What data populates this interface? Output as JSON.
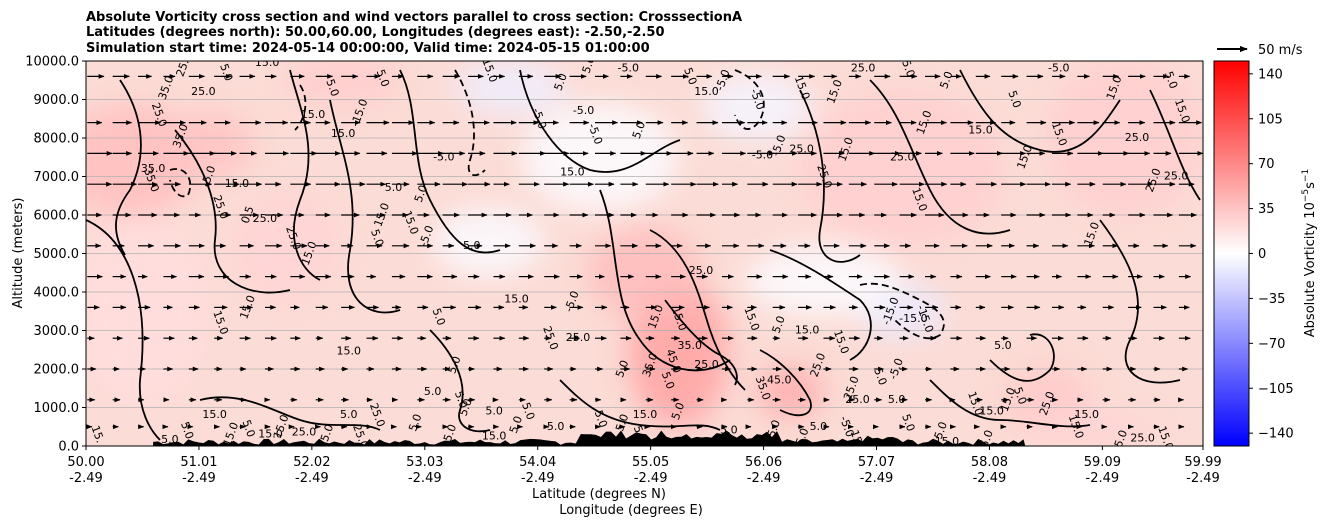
{
  "chart_data": {
    "type": "heatmap",
    "title_lines": [
      "Absolute Vorticity cross section and wind vectors parallel to cross section: CrosssectionA",
      "Latitudes (degrees north): 50.00,60.00, Longitudes (degrees east): -2.50,-2.50",
      "Simulation start time: 2024-05-14 00:00:00, Valid time: 2024-05-15 01:00:00"
    ],
    "xlabel_lat": "Latitude (degrees N)",
    "xlabel_lon": "Longitude (degrees E)",
    "ylabel": "Altitude (meters)",
    "xlim": [
      50.0,
      59.99
    ],
    "ylim": [
      0,
      10000
    ],
    "x_ticks": [
      {
        "value": 50.0,
        "lat": "50.00",
        "lon": "-2.49"
      },
      {
        "value": 51.01,
        "lat": "51.01",
        "lon": "-2.49"
      },
      {
        "value": 52.02,
        "lat": "52.02",
        "lon": "-2.49"
      },
      {
        "value": 53.03,
        "lat": "53.03",
        "lon": "-2.49"
      },
      {
        "value": 54.04,
        "lat": "54.04",
        "lon": "-2.49"
      },
      {
        "value": 55.05,
        "lat": "55.05",
        "lon": "-2.49"
      },
      {
        "value": 56.06,
        "lat": "56.06",
        "lon": "-2.49"
      },
      {
        "value": 57.07,
        "lat": "57.07",
        "lon": "-2.49"
      },
      {
        "value": 58.08,
        "lat": "58.08",
        "lon": "-2.49"
      },
      {
        "value": 59.09,
        "lat": "59.09",
        "lon": "-2.49"
      },
      {
        "value": 59.99,
        "lat": "59.99",
        "lon": "-2.49"
      }
    ],
    "y_ticks": [
      {
        "value": 0,
        "label": "0.0"
      },
      {
        "value": 1000,
        "label": "1000.0"
      },
      {
        "value": 2000,
        "label": "2000.0"
      },
      {
        "value": 3000,
        "label": "3000.0"
      },
      {
        "value": 4000,
        "label": "4000.0"
      },
      {
        "value": 5000,
        "label": "5000.0"
      },
      {
        "value": 6000,
        "label": "6000.0"
      },
      {
        "value": 7000,
        "label": "7000.0"
      },
      {
        "value": 8000,
        "label": "8000.0"
      },
      {
        "value": 9000,
        "label": "9000.0"
      },
      {
        "value": 10000,
        "label": "10000.0"
      }
    ],
    "grid": "horizontal",
    "colorbar": {
      "label": "Absolute Vorticity 10",
      "label_exponent": "−5",
      "label_suffix": "s",
      "label_suffix_exponent": "−1",
      "range": [
        -150,
        150
      ],
      "ticks": [
        {
          "value": 140,
          "label": "140"
        },
        {
          "value": 105,
          "label": "105"
        },
        {
          "value": 70,
          "label": "70"
        },
        {
          "value": 35,
          "label": "35"
        },
        {
          "value": 0,
          "label": "0"
        },
        {
          "value": -35,
          "label": "−35"
        },
        {
          "value": -70,
          "label": "−70"
        },
        {
          "value": -105,
          "label": "−105"
        },
        {
          "value": -140,
          "label": "−140"
        }
      ],
      "colors": {
        "negative": "#0000ff",
        "zero": "#ffffff",
        "positive": "#ff0000"
      }
    },
    "quiver_key": {
      "label": "50 m/s",
      "speed": 50
    },
    "wind_rows": [
      {
        "altitude": 9600,
        "speed": 9
      },
      {
        "altitude": 8400,
        "speed": 12
      },
      {
        "altitude": 7600,
        "speed": 14
      },
      {
        "altitude": 6800,
        "speed": 13
      },
      {
        "altitude": 6000,
        "speed": 10
      },
      {
        "altitude": 5200,
        "speed": 9
      },
      {
        "altitude": 4400,
        "speed": 8
      },
      {
        "altitude": 3600,
        "speed": 7
      },
      {
        "altitude": 2800,
        "speed": 6
      },
      {
        "altitude": 2000,
        "speed": 5
      },
      {
        "altitude": 1200,
        "speed": 4
      },
      {
        "altitude": 500,
        "speed": 3
      }
    ],
    "vorticity_blobs": [
      {
        "lat": 55.3,
        "alt": 2400,
        "value": 55,
        "rlat": 0.45,
        "ralt": 1900
      },
      {
        "lat": 56.3,
        "alt": 1400,
        "value": 48,
        "rlat": 0.3,
        "ralt": 700
      },
      {
        "lat": 50.4,
        "alt": 7400,
        "value": 38,
        "rlat": 0.6,
        "ralt": 1500
      },
      {
        "lat": 51.1,
        "alt": 7800,
        "value": 35,
        "rlat": 0.4,
        "ralt": 900
      },
      {
        "lat": 52.3,
        "alt": 9500,
        "value": 30,
        "rlat": 0.5,
        "ralt": 700
      },
      {
        "lat": 55.0,
        "alt": 4500,
        "value": 40,
        "rlat": 0.5,
        "ralt": 1200
      },
      {
        "lat": 57.3,
        "alt": 7200,
        "value": 28,
        "rlat": 0.9,
        "ralt": 2000
      },
      {
        "lat": 59.3,
        "alt": 8000,
        "value": 28,
        "rlat": 0.7,
        "ralt": 2000
      },
      {
        "lat": 58.6,
        "alt": 1200,
        "value": 32,
        "rlat": 0.4,
        "ralt": 900
      },
      {
        "lat": 59.0,
        "alt": 400,
        "value": 25,
        "rlat": 0.6,
        "ralt": 500
      },
      {
        "lat": 51.8,
        "alt": 5200,
        "value": 25,
        "rlat": 0.5,
        "ralt": 1500
      },
      {
        "lat": 50.5,
        "alt": 3500,
        "value": 20,
        "rlat": 0.6,
        "ralt": 2500
      },
      {
        "lat": 53.8,
        "alt": 9300,
        "value": -10,
        "rlat": 0.5,
        "ralt": 700
      },
      {
        "lat": 56.0,
        "alt": 8800,
        "value": -6,
        "rlat": 0.5,
        "ralt": 900
      },
      {
        "lat": 57.3,
        "alt": 3500,
        "value": -12,
        "rlat": 0.4,
        "ralt": 700
      },
      {
        "lat": 53.6,
        "alt": 5300,
        "value": -3,
        "rlat": 0.5,
        "ralt": 900
      },
      {
        "lat": 56.6,
        "alt": 4300,
        "value": -2,
        "rlat": 0.7,
        "ralt": 900
      },
      {
        "lat": 54.6,
        "alt": 7500,
        "value": -2,
        "rlat": 0.7,
        "ralt": 1400
      }
    ],
    "contour_labels": [
      {
        "lat": 50.88,
        "alt": 9900,
        "text": "25.0"
      },
      {
        "lat": 51.62,
        "alt": 9950,
        "text": "15.0"
      },
      {
        "lat": 51.25,
        "alt": 9700,
        "text": "5.0"
      },
      {
        "lat": 50.72,
        "alt": 9300,
        "text": "35.0"
      },
      {
        "lat": 51.05,
        "alt": 9200,
        "text": "25.0"
      },
      {
        "lat": 50.65,
        "alt": 8600,
        "text": "25.0"
      },
      {
        "lat": 50.85,
        "alt": 8050,
        "text": "35.0"
      },
      {
        "lat": 50.6,
        "alt": 7200,
        "text": "35.0"
      },
      {
        "lat": 50.58,
        "alt": 6900,
        "text": "35.0"
      },
      {
        "lat": 51.1,
        "alt": 7000,
        "text": "-5.0"
      },
      {
        "lat": 51.35,
        "alt": 6800,
        "text": "15.0"
      },
      {
        "lat": 51.2,
        "alt": 6200,
        "text": "25.0"
      },
      {
        "lat": 51.45,
        "alt": 6000,
        "text": "0.5"
      },
      {
        "lat": 51.6,
        "alt": 5900,
        "text": "25.0"
      },
      {
        "lat": 51.85,
        "alt": 5400,
        "text": "25.0"
      },
      {
        "lat": 52.0,
        "alt": 5000,
        "text": "15.0"
      },
      {
        "lat": 52.03,
        "alt": 8600,
        "text": "15.0"
      },
      {
        "lat": 52.2,
        "alt": 9300,
        "text": "5.0"
      },
      {
        "lat": 52.45,
        "alt": 8650,
        "text": "-15.0"
      },
      {
        "lat": 52.3,
        "alt": 8100,
        "text": "15.0"
      },
      {
        "lat": 52.65,
        "alt": 9550,
        "text": "5.0"
      },
      {
        "lat": 52.65,
        "alt": 6000,
        "text": "15.0"
      },
      {
        "lat": 52.75,
        "alt": 6700,
        "text": "5.0"
      },
      {
        "lat": 52.6,
        "alt": 5400,
        "text": "5.0"
      },
      {
        "lat": 53.0,
        "alt": 6550,
        "text": "5.0"
      },
      {
        "lat": 53.2,
        "alt": 7500,
        "text": "-5.0"
      },
      {
        "lat": 52.9,
        "alt": 5800,
        "text": "15.0"
      },
      {
        "lat": 53.05,
        "alt": 5450,
        "text": "-5.0"
      },
      {
        "lat": 53.45,
        "alt": 5200,
        "text": "5.0"
      },
      {
        "lat": 53.6,
        "alt": 9800,
        "text": "-15.0"
      },
      {
        "lat": 54.25,
        "alt": 9450,
        "text": "5.0"
      },
      {
        "lat": 54.45,
        "alt": 8700,
        "text": "-5.0"
      },
      {
        "lat": 54.05,
        "alt": 8500,
        "text": "-5.0"
      },
      {
        "lat": 54.5,
        "alt": 9900,
        "text": "5.0"
      },
      {
        "lat": 54.35,
        "alt": 7100,
        "text": "15.0"
      },
      {
        "lat": 54.55,
        "alt": 8100,
        "text": "-5.0"
      },
      {
        "lat": 54.95,
        "alt": 8200,
        "text": "5.0"
      },
      {
        "lat": 54.85,
        "alt": 9800,
        "text": "-5.0"
      },
      {
        "lat": 55.4,
        "alt": 9600,
        "text": "5.0"
      },
      {
        "lat": 55.7,
        "alt": 9500,
        "text": "-5.0"
      },
      {
        "lat": 55.55,
        "alt": 9200,
        "text": "15.0"
      },
      {
        "lat": 56.0,
        "alt": 9000,
        "text": "-5.0"
      },
      {
        "lat": 56.2,
        "alt": 7800,
        "text": "-5.0"
      },
      {
        "lat": 56.05,
        "alt": 7550,
        "text": "-5.0"
      },
      {
        "lat": 56.4,
        "alt": 9300,
        "text": "15.0"
      },
      {
        "lat": 56.7,
        "alt": 9200,
        "text": "15.0"
      },
      {
        "lat": 56.4,
        "alt": 7700,
        "text": "25.0"
      },
      {
        "lat": 56.6,
        "alt": 7000,
        "text": "25.0"
      },
      {
        "lat": 56.8,
        "alt": 7700,
        "text": "15.0"
      },
      {
        "lat": 56.95,
        "alt": 9800,
        "text": "25.0"
      },
      {
        "lat": 57.35,
        "alt": 9800,
        "text": "5.0"
      },
      {
        "lat": 57.5,
        "alt": 8400,
        "text": "15.0"
      },
      {
        "lat": 57.3,
        "alt": 7500,
        "text": "25.0"
      },
      {
        "lat": 57.45,
        "alt": 6400,
        "text": "15.0"
      },
      {
        "lat": 57.7,
        "alt": 9500,
        "text": "5.0"
      },
      {
        "lat": 58.0,
        "alt": 8200,
        "text": "15.0"
      },
      {
        "lat": 58.3,
        "alt": 9000,
        "text": "5.0"
      },
      {
        "lat": 58.4,
        "alt": 7500,
        "text": "15.0"
      },
      {
        "lat": 58.7,
        "alt": 9800,
        "text": "-5.0"
      },
      {
        "lat": 58.7,
        "alt": 8100,
        "text": "15.0"
      },
      {
        "lat": 59.2,
        "alt": 9300,
        "text": "15.0"
      },
      {
        "lat": 59.4,
        "alt": 8000,
        "text": "25.0"
      },
      {
        "lat": 59.7,
        "alt": 9500,
        "text": "5.0"
      },
      {
        "lat": 59.55,
        "alt": 6900,
        "text": "25.0"
      },
      {
        "lat": 59.75,
        "alt": 7000,
        "text": "25.0"
      },
      {
        "lat": 59.8,
        "alt": 8700,
        "text": "15.0"
      },
      {
        "lat": 59.0,
        "alt": 5500,
        "text": "15.0"
      },
      {
        "lat": 55.5,
        "alt": 4550,
        "text": "25.0"
      },
      {
        "lat": 55.3,
        "alt": 3300,
        "text": "15.0"
      },
      {
        "lat": 55.1,
        "alt": 3350,
        "text": "15.0"
      },
      {
        "lat": 55.4,
        "alt": 2600,
        "text": "35.0"
      },
      {
        "lat": 55.25,
        "alt": 2200,
        "text": "45.0"
      },
      {
        "lat": 55.05,
        "alt": 2100,
        "text": "35.0"
      },
      {
        "lat": 55.55,
        "alt": 2100,
        "text": "25.0"
      },
      {
        "lat": 55.95,
        "alt": 3300,
        "text": "15.0"
      },
      {
        "lat": 56.2,
        "alt": 3150,
        "text": "5.0"
      },
      {
        "lat": 56.45,
        "alt": 3000,
        "text": "15.0"
      },
      {
        "lat": 56.75,
        "alt": 2700,
        "text": "15.0"
      },
      {
        "lat": 56.55,
        "alt": 2100,
        "text": "25.0"
      },
      {
        "lat": 56.2,
        "alt": 1700,
        "text": "45.0"
      },
      {
        "lat": 56.05,
        "alt": 1500,
        "text": "35.0"
      },
      {
        "lat": 56.85,
        "alt": 1500,
        "text": "25.0"
      },
      {
        "lat": 56.9,
        "alt": 1200,
        "text": "25.0"
      },
      {
        "lat": 57.1,
        "alt": 1800,
        "text": "5.0"
      },
      {
        "lat": 57.2,
        "alt": 3500,
        "text": "-15.0"
      },
      {
        "lat": 57.4,
        "alt": 3300,
        "text": "-15.0"
      },
      {
        "lat": 57.5,
        "alt": 3300,
        "text": "-15.0"
      },
      {
        "lat": 57.25,
        "alt": 2000,
        "text": "-5.0"
      },
      {
        "lat": 57.25,
        "alt": 1200,
        "text": "5.0"
      },
      {
        "lat": 57.35,
        "alt": 600,
        "text": "5.0"
      },
      {
        "lat": 57.65,
        "alt": 400,
        "text": "5.0"
      },
      {
        "lat": 58.2,
        "alt": 2600,
        "text": "5.0"
      },
      {
        "lat": 57.95,
        "alt": 1100,
        "text": "15.0"
      },
      {
        "lat": 58.25,
        "alt": 1200,
        "text": "15.0"
      },
      {
        "lat": 58.1,
        "alt": 900,
        "text": "15.0"
      },
      {
        "lat": 58.35,
        "alt": 1300,
        "text": "5.0"
      },
      {
        "lat": 58.6,
        "alt": 1100,
        "text": "25.0"
      },
      {
        "lat": 58.95,
        "alt": 800,
        "text": "15.0"
      },
      {
        "lat": 58.85,
        "alt": 500,
        "text": "15.0"
      },
      {
        "lat": 59.25,
        "alt": 100,
        "text": "25.0"
      },
      {
        "lat": 59.45,
        "alt": 200,
        "text": "25.0"
      },
      {
        "lat": 59.65,
        "alt": 200,
        "text": "15.0"
      },
      {
        "lat": 58.05,
        "alt": 100,
        "text": "15.0"
      },
      {
        "lat": 57.7,
        "alt": 100,
        "text": "15.0"
      },
      {
        "lat": 56.9,
        "alt": 100,
        "text": "15.0"
      },
      {
        "lat": 56.4,
        "alt": 150,
        "text": "25.0"
      },
      {
        "lat": 55.75,
        "alt": 400,
        "text": "5.0"
      },
      {
        "lat": 55.2,
        "alt": 1700,
        "text": "5.0"
      },
      {
        "lat": 54.8,
        "alt": 2000,
        "text": "5.0"
      },
      {
        "lat": 54.4,
        "alt": 2800,
        "text": "25.0"
      },
      {
        "lat": 54.15,
        "alt": 2800,
        "text": "25.0"
      },
      {
        "lat": 54.35,
        "alt": 3750,
        "text": "-5.0"
      },
      {
        "lat": 53.85,
        "alt": 3800,
        "text": "15.0"
      },
      {
        "lat": 53.15,
        "alt": 3350,
        "text": "5.0"
      },
      {
        "lat": 53.3,
        "alt": 2100,
        "text": "5.0"
      },
      {
        "lat": 53.1,
        "alt": 1400,
        "text": "5.0"
      },
      {
        "lat": 53.35,
        "alt": 1200,
        "text": "5.0"
      },
      {
        "lat": 53.4,
        "alt": 1000,
        "text": "5.0"
      },
      {
        "lat": 53.65,
        "alt": 900,
        "text": "5.0"
      },
      {
        "lat": 53.95,
        "alt": 900,
        "text": "5.0"
      },
      {
        "lat": 53.85,
        "alt": 550,
        "text": "5.0"
      },
      {
        "lat": 54.2,
        "alt": 500,
        "text": "5.0"
      },
      {
        "lat": 54.6,
        "alt": 700,
        "text": "5.0"
      },
      {
        "lat": 54.8,
        "alt": 600,
        "text": "5.0"
      },
      {
        "lat": 55.0,
        "alt": 800,
        "text": "15.0"
      },
      {
        "lat": 54.95,
        "alt": 300,
        "text": "5.0"
      },
      {
        "lat": 55.3,
        "alt": 900,
        "text": "5.0"
      },
      {
        "lat": 52.35,
        "alt": 2450,
        "text": "15.0"
      },
      {
        "lat": 51.2,
        "alt": 3200,
        "text": "15.0"
      },
      {
        "lat": 51.45,
        "alt": 3600,
        "text": "15.0"
      },
      {
        "lat": 52.35,
        "alt": 800,
        "text": "5.0"
      },
      {
        "lat": 52.6,
        "alt": 800,
        "text": "25.0"
      },
      {
        "lat": 52.95,
        "alt": 600,
        "text": "5.0"
      },
      {
        "lat": 51.15,
        "alt": 800,
        "text": "15.0"
      },
      {
        "lat": 50.9,
        "alt": 400,
        "text": "5.0"
      },
      {
        "lat": 51.3,
        "alt": 300,
        "text": "15.0"
      },
      {
        "lat": 51.65,
        "alt": 300,
        "text": "15.0"
      },
      {
        "lat": 51.45,
        "alt": 450,
        "text": "5.0"
      },
      {
        "lat": 51.75,
        "alt": 500,
        "text": "15.0"
      },
      {
        "lat": 50.75,
        "alt": 150,
        "text": "5.0"
      },
      {
        "lat": 50.1,
        "alt": 300,
        "text": "15."
      },
      {
        "lat": 53.25,
        "alt": 250,
        "text": "15.0"
      },
      {
        "lat": 53.65,
        "alt": 250,
        "text": "15.0"
      },
      {
        "lat": 52.45,
        "alt": 250,
        "text": "25.0"
      },
      {
        "lat": 52.15,
        "alt": 250,
        "text": "15.0"
      },
      {
        "lat": 51.95,
        "alt": 350,
        "text": "25.0"
      },
      {
        "lat": 56.8,
        "alt": 500,
        "text": "-5.0"
      },
      {
        "lat": 56.15,
        "alt": 400,
        "text": "-5.0"
      },
      {
        "lat": 56.55,
        "alt": 500,
        "text": "5.0"
      }
    ]
  }
}
